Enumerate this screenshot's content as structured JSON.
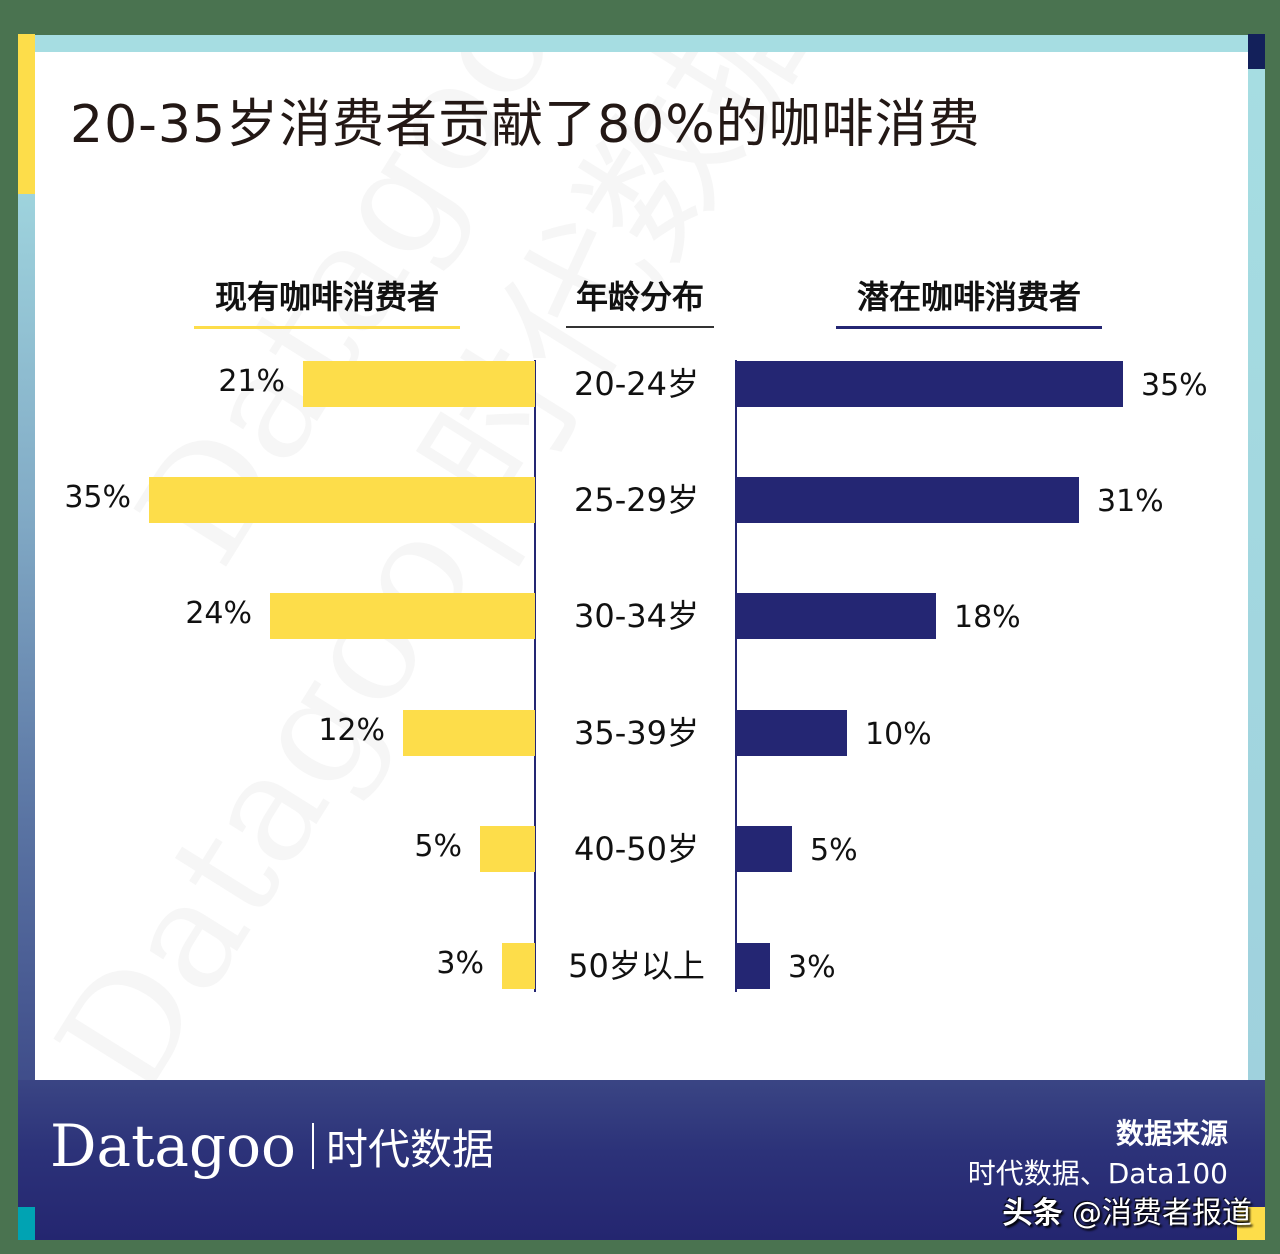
{
  "title": "20-35岁消费者贡献了80%的咖啡消费",
  "headers": {
    "left": "现有咖啡消费者",
    "middle": "年龄分布",
    "right": "潜在咖啡消费者"
  },
  "colors": {
    "existing": "#fddd4a",
    "potential": "#242673",
    "background": "#4a7350",
    "footer": "#2c3279"
  },
  "rows": [
    {
      "age": "20-24岁",
      "existing": "21%",
      "potential": "35%"
    },
    {
      "age": "25-29岁",
      "existing": "35%",
      "potential": "31%"
    },
    {
      "age": "30-34岁",
      "existing": "24%",
      "potential": "18%"
    },
    {
      "age": "35-39岁",
      "existing": "12%",
      "potential": "10%"
    },
    {
      "age": "40-50岁",
      "existing": "5%",
      "potential": "5%"
    },
    {
      "age": "50岁以上",
      "existing": "3%",
      "potential": "3%"
    }
  ],
  "footer": {
    "brand_en": "Datagoo",
    "brand_cn": "时代数据",
    "source_label": "数据来源",
    "source_text": "时代数据、Data100",
    "toutiao_prefix": "头条",
    "toutiao_handle": "@消费者报道"
  },
  "watermark": {
    "text": "Datagoo|时代数据"
  },
  "chart_data": {
    "type": "bar",
    "orientation": "horizontal-butterfly",
    "title": "20-35岁消费者贡献了80%的咖啡消费",
    "categories": [
      "20-24岁",
      "25-29岁",
      "30-34岁",
      "35-39岁",
      "40-50岁",
      "50岁以上"
    ],
    "series": [
      {
        "name": "现有咖啡消费者",
        "values": [
          21,
          35,
          24,
          12,
          5,
          3
        ],
        "color": "#fddd4a",
        "side": "left"
      },
      {
        "name": "潜在咖啡消费者",
        "values": [
          35,
          31,
          18,
          10,
          5,
          3
        ],
        "color": "#242673",
        "side": "right"
      }
    ],
    "category_axis_label": "年龄分布",
    "value_unit": "%",
    "xlim": [
      0,
      35
    ],
    "grid": false,
    "data_labels": true,
    "source": "时代数据、Data100"
  }
}
